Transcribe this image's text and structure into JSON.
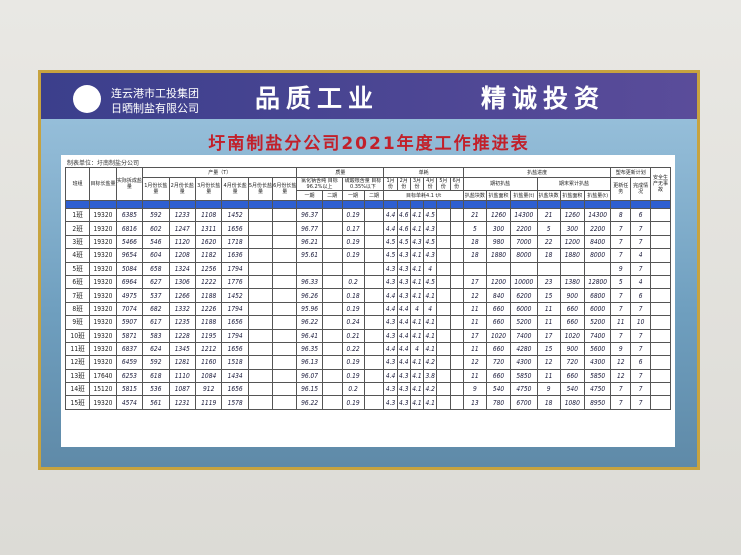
{
  "header": {
    "company_line1": "连云港市工投集团",
    "company_line2": "日晒制盐有限公司",
    "slogan_left": "品质工业",
    "slogan_right": "精诚投资",
    "title": "圩南制盐分公司2021年度工作推进表"
  },
  "unit_line": "制表单位：圩南制盐分公司",
  "table": {
    "head": {
      "group": "班组",
      "target": "目标长盐量",
      "actual": "实际拆成盐量",
      "output": "产量（T）",
      "quality": "质量",
      "consumption": "单耗",
      "raking": "扒盐进度",
      "cloth": "塑布更新计划",
      "safety": "安全生产无事故",
      "months_output": [
        "1月份长盐量",
        "2月份长盐量",
        "3月份长盐量",
        "4月份长盐量",
        "5月份长盐量",
        "6月份长盐量"
      ],
      "nacl": "氯化钠含纯 目标96.2%以上",
      "sulfate": "硫酸根含量 目标0.35%以下",
      "months_cons": [
        "1月份",
        "2月份",
        "3月份",
        "4月份",
        "5月份",
        "6月份"
      ],
      "period_start": "期初扒盐",
      "period_end": "期末累计扒盐",
      "update_task": "更新任务",
      "done": "完成情况",
      "phases": [
        "一期",
        "二期",
        "一期",
        "二期"
      ],
      "cons_target": "目标单耗4.1 t/t",
      "rake_cols": [
        "扒盐块数",
        "扒盐面积",
        "扒盐量(t)",
        "扒盐块数",
        "扒盐面积",
        "扒盐量(t)"
      ]
    },
    "rows": [
      [
        "1班",
        19320,
        6385,
        592,
        1233,
        1108,
        1452,
        null,
        null,
        96.37,
        null,
        0.19,
        null,
        4.4,
        4.6,
        4.1,
        4.5,
        null,
        null,
        21,
        1260,
        14300,
        21,
        1260,
        14300,
        8,
        6,
        null
      ],
      [
        "2班",
        19320,
        6816,
        602,
        1247,
        1311,
        1656,
        null,
        null,
        96.77,
        null,
        0.17,
        null,
        4.4,
        4.6,
        4.1,
        4.3,
        null,
        null,
        5,
        300,
        2200,
        5,
        300,
        2200,
        7,
        7,
        null
      ],
      [
        "3班",
        19320,
        5466,
        546,
        1120,
        1620,
        1718,
        null,
        null,
        96.21,
        null,
        0.19,
        null,
        4.5,
        4.5,
        4.3,
        4.5,
        null,
        null,
        18,
        980,
        7000,
        22,
        1200,
        8400,
        7,
        7,
        null
      ],
      [
        "4班",
        19320,
        9654,
        604,
        1208,
        1182,
        1636,
        null,
        null,
        95.61,
        null,
        0.19,
        null,
        4.5,
        4.3,
        4.1,
        4.3,
        null,
        null,
        18,
        1880,
        8000,
        18,
        1880,
        8000,
        7,
        4,
        null
      ],
      [
        "5班",
        19320,
        5084,
        658,
        1324,
        1256,
        1794,
        null,
        null,
        null,
        null,
        null,
        null,
        4.3,
        4.3,
        4.1,
        4.0,
        null,
        null,
        null,
        null,
        null,
        null,
        null,
        null,
        9,
        7,
        null
      ],
      [
        "6班",
        19320,
        6964,
        627,
        1306,
        1222,
        1776,
        null,
        null,
        96.33,
        null,
        0.2,
        null,
        4.3,
        4.3,
        4.1,
        4.5,
        null,
        null,
        17,
        1200,
        10000,
        23,
        1380,
        12800,
        5,
        4,
        null
      ],
      [
        "7班",
        19320,
        4975,
        537,
        1266,
        1188,
        1452,
        null,
        null,
        96.26,
        null,
        0.18,
        null,
        4.4,
        4.3,
        4.1,
        4.1,
        null,
        null,
        12,
        840,
        6200,
        15,
        900,
        6800,
        7,
        6,
        null
      ],
      [
        "8班",
        19320,
        7074,
        682,
        1332,
        1226,
        1794,
        null,
        null,
        95.96,
        null,
        0.19,
        null,
        4.4,
        4.4,
        4.0,
        4.0,
        null,
        null,
        11,
        660,
        6000,
        11,
        660,
        6000,
        7,
        7,
        null
      ],
      [
        "9班",
        19320,
        5907,
        617,
        1235,
        1188,
        1656,
        null,
        null,
        96.22,
        null,
        0.24,
        null,
        4.3,
        4.4,
        4.1,
        4.1,
        null,
        null,
        11,
        660,
        5200,
        11,
        660,
        5200,
        11,
        10,
        null
      ],
      [
        "10班",
        19320,
        5871,
        583,
        1228,
        1195,
        1794,
        null,
        null,
        96.41,
        null,
        0.21,
        null,
        4.3,
        4.4,
        4.1,
        4.1,
        null,
        null,
        17,
        1020,
        7400,
        17,
        1020,
        7400,
        7,
        7,
        null
      ],
      [
        "11班",
        19320,
        6837,
        624,
        1345,
        1212,
        1656,
        null,
        null,
        96.35,
        null,
        0.22,
        null,
        4.4,
        4.4,
        4.0,
        4.1,
        null,
        null,
        11,
        660,
        4280,
        15,
        900,
        5600,
        9,
        7,
        null
      ],
      [
        "12班",
        19320,
        6459,
        592,
        1281,
        1160,
        1518,
        null,
        null,
        96.13,
        null,
        0.19,
        null,
        4.3,
        4.4,
        4.1,
        4.2,
        null,
        null,
        12,
        720,
        4300,
        12,
        720,
        4300,
        12,
        6,
        null
      ],
      [
        "13班",
        17640,
        6253,
        618,
        1110,
        1084,
        1434,
        null,
        null,
        96.07,
        null,
        0.19,
        null,
        4.4,
        4.3,
        4.1,
        3.8,
        null,
        null,
        11,
        660,
        5850,
        11,
        660,
        5850,
        12,
        7,
        null
      ],
      [
        "14班",
        15120,
        5815,
        536,
        1087,
        912,
        1656,
        null,
        null,
        96.15,
        null,
        0.2,
        null,
        4.3,
        4.3,
        4.1,
        4.2,
        null,
        null,
        9,
        540,
        4750,
        9,
        540,
        4750,
        7,
        7,
        null
      ],
      [
        "15班",
        19320,
        4574,
        561,
        1231,
        1119,
        1578,
        null,
        null,
        96.22,
        null,
        0.19,
        null,
        4.3,
        4.3,
        4.1,
        4.1,
        null,
        null,
        13,
        780,
        6700,
        18,
        1080,
        8950,
        7,
        7,
        null
      ]
    ]
  }
}
